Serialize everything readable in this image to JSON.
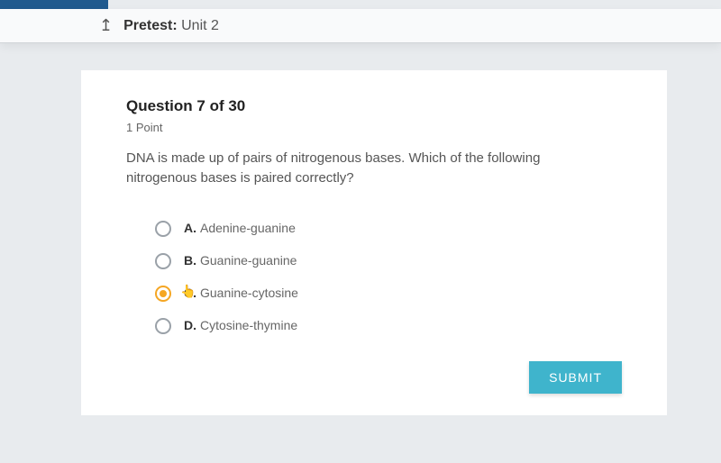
{
  "header": {
    "title_bold": "Pretest:",
    "title_rest": " Unit 2",
    "back_icon": "↥"
  },
  "question": {
    "number_label": "Question 7 of 30",
    "points_label": "1 Point",
    "prompt": "DNA is made up of pairs of nitrogenous bases. Which of the following nitrogenous bases is paired correctly?"
  },
  "options": [
    {
      "letter": "A.",
      "text": "Adenine-guanine",
      "selected": false
    },
    {
      "letter": "B.",
      "text": "Guanine-guanine",
      "selected": false
    },
    {
      "letter": "C.",
      "text": "Guanine-cytosine",
      "selected": true
    },
    {
      "letter": "D.",
      "text": "Cytosine-thymine",
      "selected": false
    }
  ],
  "buttons": {
    "submit": "SUBMIT"
  },
  "colors": {
    "accent": "#3fb4cc",
    "selected_radio": "#f5a623",
    "top_bar": "#215a8e"
  }
}
